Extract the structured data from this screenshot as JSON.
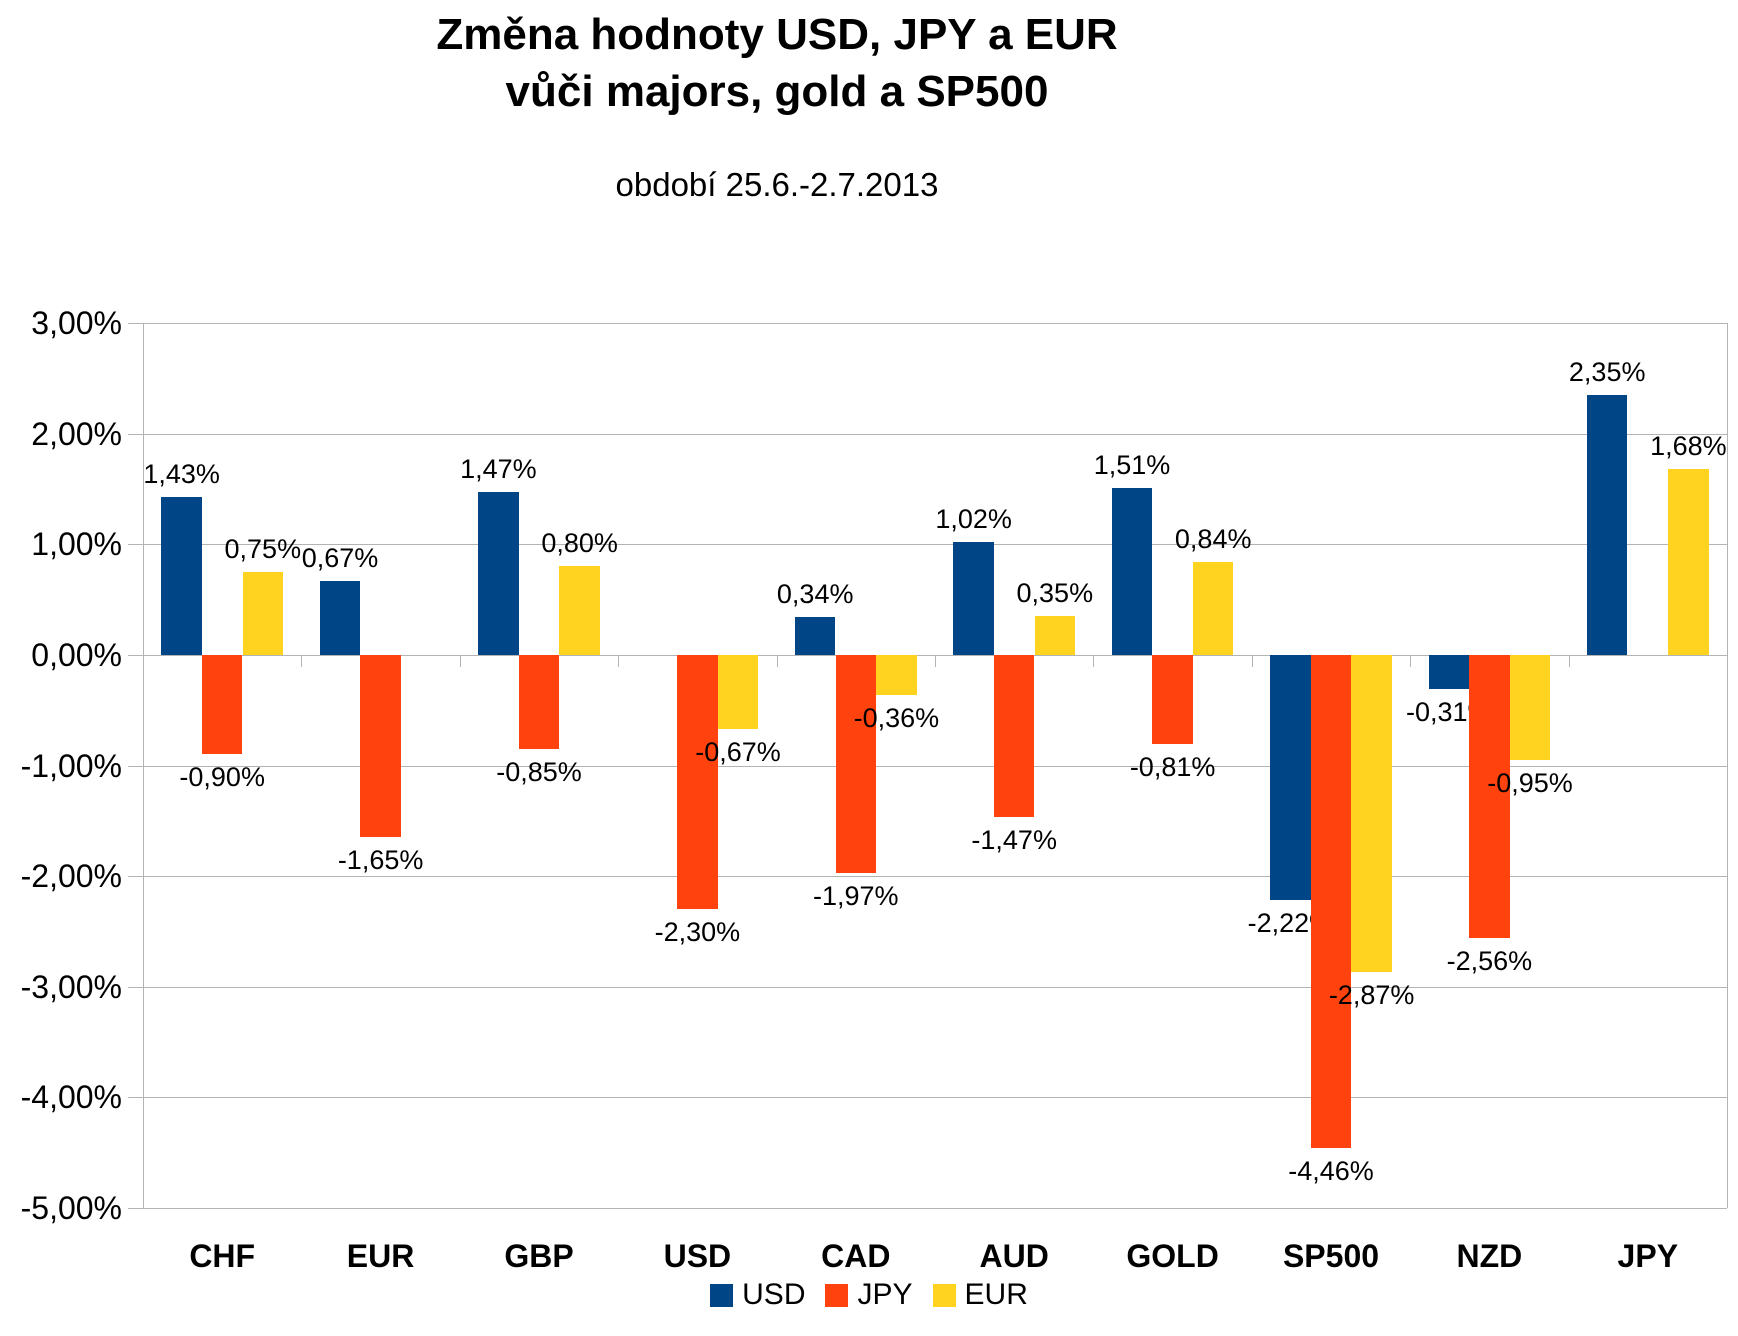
{
  "header": {
    "title_line1": "Změna hodnoty USD, JPY a EUR",
    "title_line2": "vůči majors, gold a SP500",
    "subtitle": "období 25.6.-2.7.2013"
  },
  "chart_data": {
    "type": "bar",
    "title": "Změna hodnoty USD, JPY a EUR vůči majors, gold a SP500",
    "subtitle": "období 25.6.-2.7.2013",
    "categories": [
      "CHF",
      "EUR",
      "GBP",
      "USD",
      "CAD",
      "AUD",
      "GOLD",
      "SP500",
      "NZD",
      "JPY"
    ],
    "series": [
      {
        "name": "USD",
        "color": "#004586",
        "values": [
          1.43,
          0.67,
          1.47,
          null,
          0.34,
          1.02,
          1.51,
          -2.22,
          -0.31,
          2.35
        ],
        "labels": [
          "1,43%",
          "0,67%",
          "1,47%",
          null,
          "0,34%",
          "1,02%",
          "1,51%",
          "-2,22%",
          "-0,31%",
          "2,35%"
        ]
      },
      {
        "name": "JPY",
        "color": "#FF420E",
        "values": [
          -0.9,
          -1.65,
          -0.85,
          -2.3,
          -1.97,
          -1.47,
          -0.81,
          -4.46,
          -2.56,
          null
        ],
        "labels": [
          "-0,90%",
          "-1,65%",
          "-0,85%",
          "-2,30%",
          "-1,97%",
          "-1,47%",
          "-0,81%",
          "-4,46%",
          "-2,56%",
          null
        ]
      },
      {
        "name": "EUR",
        "color": "#FFD320",
        "values": [
          0.75,
          null,
          0.8,
          -0.67,
          -0.36,
          0.35,
          0.84,
          -2.87,
          -0.95,
          1.68
        ],
        "labels": [
          "0,75%",
          null,
          "0,80%",
          "-0,67%",
          "-0,36%",
          "0,35%",
          "0,84%",
          "-2,87%",
          "-0,95%",
          "1,68%"
        ]
      }
    ],
    "xlabel": "",
    "ylabel": "",
    "ylim": [
      -5,
      3
    ],
    "ytick_step": 1,
    "ytick_labels": [
      "3,00%",
      "2,00%",
      "1,00%",
      "0,00%",
      "-1,00%",
      "-2,00%",
      "-3,00%",
      "-4,00%",
      "-5,00%"
    ],
    "grid": true,
    "legend_position": "bottom",
    "legend": [
      "USD",
      "JPY",
      "EUR"
    ],
    "grid_color": "#b3b3b3",
    "text_color": "#000000",
    "background_color": "#ffffff"
  }
}
